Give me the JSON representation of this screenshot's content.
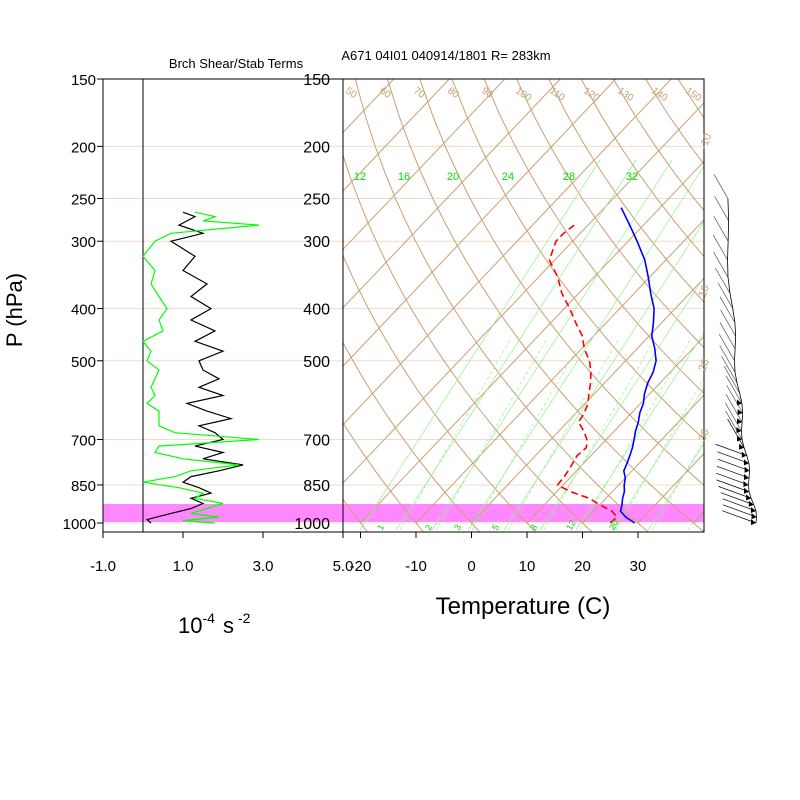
{
  "left_panel": {
    "title": "Brch Shear/Stab Terms",
    "ylabel": "P (hPa)",
    "xlabel_base": "10",
    "xlabel_exp": "-4",
    "xlabel_unit": "s",
    "xlabel_unit_exp": "-2",
    "xticks": [
      "-1.0",
      "1.0",
      "3.0",
      "5.0"
    ],
    "xtick_values": [
      -1,
      1,
      3,
      5
    ],
    "xlim": [
      -1.0,
      5.0
    ]
  },
  "right_panel": {
    "title": "A671 04I01 040914/1801 R= 283km",
    "xlabel": "Temperature (C)",
    "xticks": [
      "-20",
      "-10",
      "0",
      "10",
      "20",
      "30"
    ],
    "xtick_values": [
      -20,
      -10,
      0,
      10,
      20,
      30
    ],
    "xlim": [
      -23,
      43
    ]
  },
  "pressure_levels": [
    "150",
    "200",
    "250",
    "300",
    "400",
    "500",
    "700",
    "850",
    "1000"
  ],
  "pressure_values": [
    150,
    200,
    250,
    300,
    400,
    500,
    700,
    850,
    1000
  ],
  "plim": [
    150,
    1000
  ],
  "dry_adiabat_labels": [
    "50",
    "60",
    "70",
    "80",
    "90",
    "100",
    "110",
    "120",
    "130",
    "140",
    "150"
  ],
  "mixing_ratio_labels": [
    "12",
    "16",
    "20",
    "24",
    "28",
    "32"
  ],
  "small_mixing_labels": [
    "1",
    "2",
    "3",
    "5",
    "8",
    "12",
    "20"
  ],
  "side_labels": [
    "-10",
    "10",
    "20",
    "30"
  ],
  "colors": {
    "temperature": "#0000ff",
    "dewpoint": "#ff0000",
    "stability": "#000000",
    "shear": "#00ff00",
    "highlight_band": "#ff88ff",
    "skewt_lines": "#c8a073",
    "isobar_grid": "#f0dcc8",
    "moist_adiabat": "#90ee90",
    "mixing_label": "#00dd00"
  },
  "chart_data": [
    {
      "type": "line",
      "title": "Brch Shear/Stab Terms",
      "xlabel": "10-4 s -2",
      "ylabel": "P (hPa)",
      "xlim": [
        -1.0,
        5.0
      ],
      "ylim": [
        1000,
        150
      ],
      "series": [
        {
          "pressure": [
            1000,
            985,
            960,
            940,
            920,
            900,
            880,
            860,
            840,
            820,
            800,
            780,
            760,
            740,
            720,
            700,
            680,
            660,
            640,
            620,
            600,
            580,
            560,
            540,
            520,
            500,
            480,
            460,
            440,
            420,
            400,
            380,
            360,
            340,
            320,
            300,
            290,
            280,
            270,
            265
          ],
          "values": [
            0.2,
            0.1,
            0.7,
            1.2,
            1.5,
            1.2,
            1.7,
            1.4,
            1.0,
            1.2,
            1.9,
            2.5,
            1.5,
            2.0,
            1.3,
            2.0,
            1.8,
            1.4,
            2.2,
            1.6,
            1.1,
            2.0,
            1.4,
            1.9,
            1.5,
            1.4,
            2.0,
            1.3,
            1.8,
            1.2,
            1.7,
            1.2,
            1.6,
            1.0,
            1.3,
            0.7,
            1.5,
            0.9,
            1.3,
            1.0
          ]
        },
        {
          "pressure": [
            1000,
            990,
            975,
            960,
            940,
            920,
            900,
            880,
            860,
            840,
            820,
            800,
            780,
            760,
            740,
            720,
            700,
            680,
            660,
            640,
            620,
            600,
            580,
            560,
            540,
            520,
            500,
            480,
            460,
            440,
            420,
            400,
            380,
            360,
            340,
            320,
            300,
            290,
            280,
            275,
            270,
            265
          ],
          "values": [
            1.8,
            1.0,
            1.9,
            1.2,
            1.6,
            2.0,
            1.3,
            1.5,
            0.9,
            0.0,
            0.8,
            1.2,
            2.4,
            1.0,
            0.3,
            0.4,
            2.9,
            0.8,
            0.4,
            0.4,
            0.4,
            0.1,
            0.3,
            0.2,
            0.3,
            0.4,
            0.1,
            0.2,
            0.0,
            0.5,
            0.4,
            0.6,
            0.4,
            0.2,
            0.3,
            0.0,
            0.3,
            0.7,
            2.9,
            1.5,
            1.8,
            1.3
          ]
        }
      ]
    },
    {
      "type": "line",
      "title": "A671 04I01 040914/1801 R= 283km",
      "xlabel": "Temperature (C)",
      "ylabel": "P (hPa)",
      "ylim": [
        1000,
        150
      ],
      "series": [
        {
          "pressure": [
            1000,
            975,
            950,
            925,
            900,
            875,
            850,
            825,
            800,
            775,
            750,
            725,
            700,
            675,
            650,
            625,
            600,
            575,
            550,
            525,
            500,
            475,
            450,
            425,
            400,
            375,
            350,
            325,
            300,
            280,
            260
          ],
          "temperature": [
            29.4,
            26.8,
            24.8,
            24.0,
            23.0,
            22.2,
            21.0,
            20.0,
            18.5,
            17.8,
            17.0,
            16.1,
            15.0,
            13.8,
            12.8,
            11.5,
            10.5,
            9.0,
            7.8,
            6.9,
            5.5,
            3.2,
            0.5,
            -1.5,
            -3.8,
            -7.0,
            -10.2,
            -13.8,
            -18.4,
            -22.5,
            -27.0
          ]
        },
        {
          "pressure": [
            1000,
            975,
            950,
            925,
            900,
            875,
            850,
            825,
            800,
            775,
            750,
            725,
            700,
            675,
            650,
            625,
            600,
            575,
            550,
            525,
            500,
            475,
            450,
            425,
            400,
            375,
            350,
            325,
            300,
            290,
            280
          ],
          "dewpoint": [
            25.0,
            25.2,
            23.2,
            20.0,
            17.0,
            12.5,
            9.0,
            8.8,
            8.5,
            8.0,
            7.5,
            7.8,
            6.5,
            4.5,
            2.0,
            1.5,
            0.5,
            -1.0,
            -2.5,
            -4.3,
            -6.5,
            -9.5,
            -12.0,
            -15.5,
            -19.0,
            -23.0,
            -26.5,
            -31.0,
            -33.0,
            -33.0,
            -32.5
          ]
        }
      ]
    }
  ]
}
